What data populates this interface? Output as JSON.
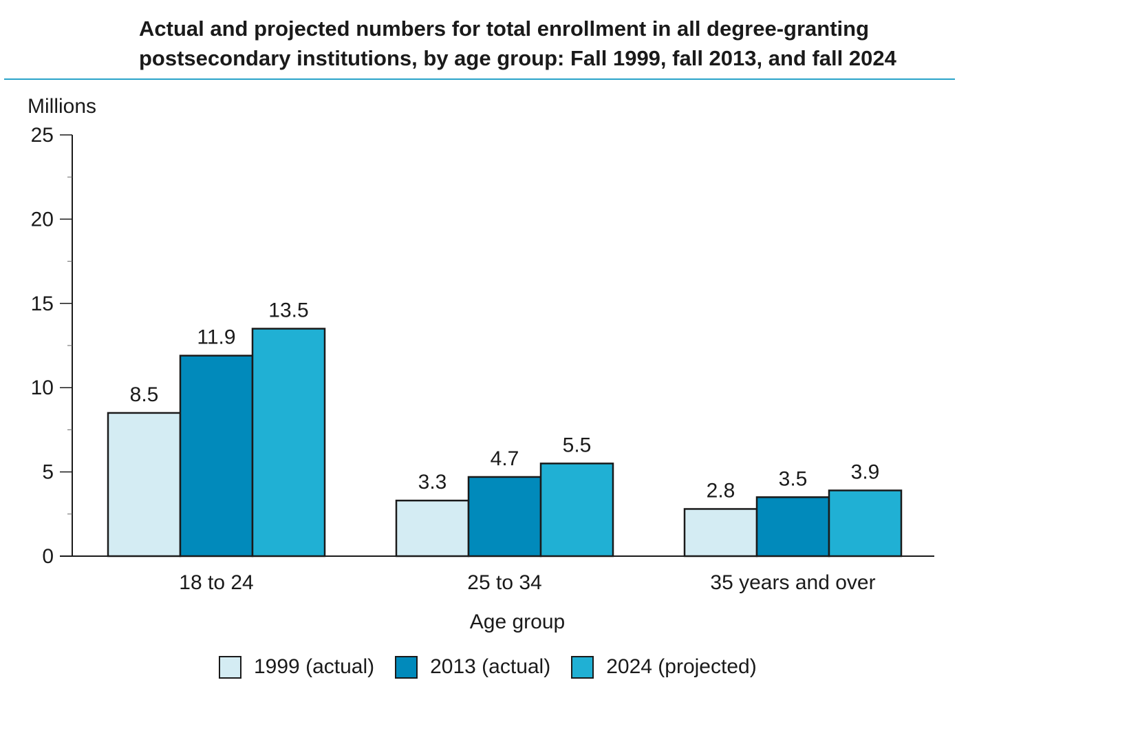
{
  "title": "Actual and projected numbers for total enrollment in all degree-granting postsecondary institutions, by age group: Fall 1999, fall 2013, and fall 2024",
  "chart_data": {
    "type": "bar",
    "title": "Actual and projected numbers for total enrollment in all degree-granting postsecondary institutions, by age group: Fall 1999, fall 2013, and fall 2024",
    "ylabel": "Millions",
    "xlabel": "Age group",
    "ylim": [
      0,
      25
    ],
    "yticks": [
      0,
      5,
      10,
      15,
      20,
      25
    ],
    "categories": [
      "18 to 24",
      "25 to 34",
      "35 years and over"
    ],
    "series": [
      {
        "name": "1999 (actual)",
        "values": [
          8.5,
          3.3,
          2.8
        ],
        "labels": [
          "8.5",
          "3.3",
          "2.8"
        ],
        "color": "#d4ecf3"
      },
      {
        "name": "2013 (actual)",
        "values": [
          11.9,
          4.7,
          3.5
        ],
        "labels": [
          "11.9",
          "4.7",
          "3.5"
        ],
        "color": "#018abb"
      },
      {
        "name": "2024 (projected)",
        "values": [
          13.5,
          5.5,
          3.9
        ],
        "labels": [
          "13.5",
          "5.5",
          "3.9"
        ],
        "color": "#20b0d4"
      }
    ],
    "grid": false,
    "legend_position": "bottom"
  },
  "colors": {
    "title_rule": "#2aa3c9",
    "bar_outline": "#1a1a1a",
    "text": "#1a1a1a"
  }
}
